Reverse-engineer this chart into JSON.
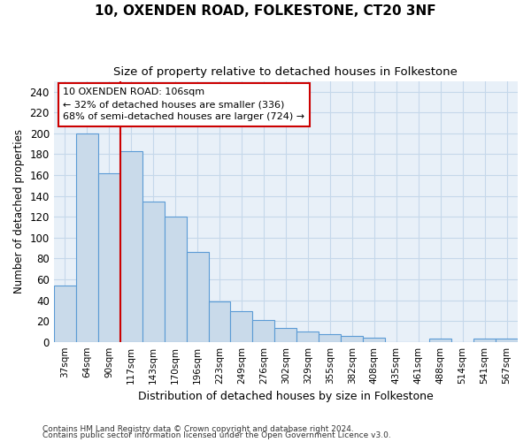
{
  "title": "10, OXENDEN ROAD, FOLKESTONE, CT20 3NF",
  "subtitle": "Size of property relative to detached houses in Folkestone",
  "xlabel": "Distribution of detached houses by size in Folkestone",
  "ylabel": "Number of detached properties",
  "categories": [
    "37sqm",
    "64sqm",
    "90sqm",
    "117sqm",
    "143sqm",
    "170sqm",
    "196sqm",
    "223sqm",
    "249sqm",
    "276sqm",
    "302sqm",
    "329sqm",
    "355sqm",
    "382sqm",
    "408sqm",
    "435sqm",
    "461sqm",
    "488sqm",
    "514sqm",
    "541sqm",
    "567sqm"
  ],
  "values": [
    54,
    200,
    162,
    183,
    135,
    120,
    86,
    39,
    29,
    21,
    13,
    10,
    7,
    6,
    4,
    0,
    0,
    3,
    0,
    3,
    3
  ],
  "bar_color": "#c9daea",
  "bar_edge_color": "#5b9bd5",
  "reference_line_x": 2.5,
  "reference_line_color": "#cc0000",
  "annotation_line1": "10 OXENDEN ROAD: 106sqm",
  "annotation_line2": "← 32% of detached houses are smaller (336)",
  "annotation_line3": "68% of semi-detached houses are larger (724) →",
  "annotation_box_edgecolor": "#cc0000",
  "ylim": [
    0,
    250
  ],
  "yticks": [
    0,
    20,
    40,
    60,
    80,
    100,
    120,
    140,
    160,
    180,
    200,
    220,
    240
  ],
  "grid_color": "#c5d8ea",
  "background_color": "#e8f0f8",
  "footnote1": "Contains HM Land Registry data © Crown copyright and database right 2024.",
  "footnote2": "Contains public sector information licensed under the Open Government Licence v3.0."
}
